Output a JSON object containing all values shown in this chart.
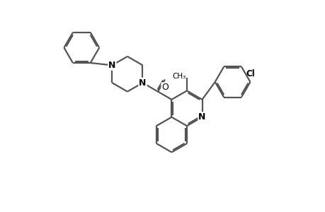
{
  "bg_color": "#ffffff",
  "line_color": "#555555",
  "text_color": "#000000",
  "lw": 1.6,
  "fig_width": 4.6,
  "fig_height": 3.0,
  "dpi": 100,
  "xlim": [
    0,
    10
  ],
  "ylim": [
    0,
    6.5
  ]
}
